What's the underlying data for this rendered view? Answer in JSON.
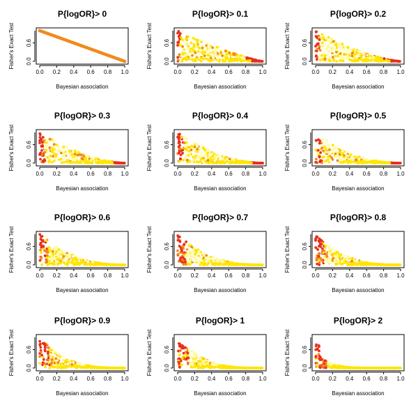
{
  "chart_data": [
    {
      "type": "scatter",
      "title": "P{logOR}> 0",
      "parameter": 0,
      "xlabel": "Bayesian association",
      "ylabel": "Fisher's Exact Test",
      "xlim": [
        0,
        1
      ],
      "ylim": [
        0,
        1
      ],
      "xticks": [
        "0.0",
        "0.2",
        "0.4",
        "0.6",
        "0.8",
        "1.0"
      ],
      "yticks": [
        "0.0",
        "0.6"
      ]
    },
    {
      "type": "scatter",
      "title": "P{logOR}> 0.1",
      "parameter": 0.1,
      "xlabel": "Bayesian association",
      "ylabel": "Fisher's Exact Test",
      "xlim": [
        0,
        1
      ],
      "ylim": [
        0,
        1
      ],
      "xticks": [
        "0.0",
        "0.2",
        "0.4",
        "0.6",
        "0.8",
        "1.0"
      ],
      "yticks": [
        "0.0",
        "0.6"
      ]
    },
    {
      "type": "scatter",
      "title": "P{logOR}> 0.2",
      "parameter": 0.2,
      "xlabel": "Bayesian association",
      "ylabel": "Fisher's Exact Test",
      "xlim": [
        0,
        1
      ],
      "ylim": [
        0,
        1
      ],
      "xticks": [
        "0.0",
        "0.2",
        "0.4",
        "0.6",
        "0.8",
        "1.0"
      ],
      "yticks": [
        "0.0",
        "0.6"
      ]
    },
    {
      "type": "scatter",
      "title": "P{logOR}> 0.3",
      "parameter": 0.3,
      "xlabel": "Bayesian association",
      "ylabel": "Fisher's Exact Test",
      "xlim": [
        0,
        1
      ],
      "ylim": [
        0,
        1
      ],
      "xticks": [
        "0.0",
        "0.2",
        "0.4",
        "0.6",
        "0.8",
        "1.0"
      ],
      "yticks": [
        "0.0",
        "0.6"
      ]
    },
    {
      "type": "scatter",
      "title": "P{logOR}> 0.4",
      "parameter": 0.4,
      "xlabel": "Bayesian association",
      "ylabel": "Fisher's Exact Test",
      "xlim": [
        0,
        1
      ],
      "ylim": [
        0,
        1
      ],
      "xticks": [
        "0.0",
        "0.2",
        "0.4",
        "0.6",
        "0.8",
        "1.0"
      ],
      "yticks": [
        "0.0",
        "0.6"
      ]
    },
    {
      "type": "scatter",
      "title": "P{logOR}> 0.5",
      "parameter": 0.5,
      "xlabel": "Bayesian association",
      "ylabel": "Fisher's Exact Test",
      "xlim": [
        0,
        1
      ],
      "ylim": [
        0,
        1
      ],
      "xticks": [
        "0.0",
        "0.2",
        "0.4",
        "0.6",
        "0.8",
        "1.0"
      ],
      "yticks": [
        "0.0",
        "0.6"
      ]
    },
    {
      "type": "scatter",
      "title": "P{logOR}> 0.6",
      "parameter": 0.6,
      "xlabel": "Bayesian association",
      "ylabel": "Fisher's Exact Test",
      "xlim": [
        0,
        1
      ],
      "ylim": [
        0,
        1
      ],
      "xticks": [
        "0.0",
        "0.2",
        "0.4",
        "0.6",
        "0.8",
        "1.0"
      ],
      "yticks": [
        "0.0",
        "0.6"
      ]
    },
    {
      "type": "scatter",
      "title": "P{logOR}> 0.7",
      "parameter": 0.7,
      "xlabel": "Bayesian association",
      "ylabel": "Fisher's Exact Test",
      "xlim": [
        0,
        1
      ],
      "ylim": [
        0,
        1
      ],
      "xticks": [
        "0.0",
        "0.2",
        "0.4",
        "0.6",
        "0.8",
        "1.0"
      ],
      "yticks": [
        "0.0",
        "0.6"
      ]
    },
    {
      "type": "scatter",
      "title": "P{logOR}> 0.8",
      "parameter": 0.8,
      "xlabel": "Bayesian association",
      "ylabel": "Fisher's Exact Test",
      "xlim": [
        0,
        1
      ],
      "ylim": [
        0,
        1
      ],
      "xticks": [
        "0.0",
        "0.2",
        "0.4",
        "0.6",
        "0.8",
        "1.0"
      ],
      "yticks": [
        "0.0",
        "0.6"
      ]
    },
    {
      "type": "scatter",
      "title": "P{logOR}> 0.9",
      "parameter": 0.9,
      "xlabel": "Bayesian association",
      "ylabel": "Fisher's Exact Test",
      "xlim": [
        0,
        1
      ],
      "ylim": [
        0,
        1
      ],
      "xticks": [
        "0.0",
        "0.2",
        "0.4",
        "0.6",
        "0.8",
        "1.0"
      ],
      "yticks": [
        "0.0",
        "0.6"
      ]
    },
    {
      "type": "scatter",
      "title": "P{logOR}> 1",
      "parameter": 1,
      "xlabel": "Bayesian association",
      "ylabel": "Fisher's Exact Test",
      "xlim": [
        0,
        1
      ],
      "ylim": [
        0,
        1
      ],
      "xticks": [
        "0.0",
        "0.2",
        "0.4",
        "0.6",
        "0.8",
        "1.0"
      ],
      "yticks": [
        "0.0",
        "0.6"
      ]
    },
    {
      "type": "scatter",
      "title": "P{logOR}> 2",
      "parameter": 2,
      "xlabel": "Bayesian association",
      "ylabel": "Fisher's Exact Test",
      "xlim": [
        0,
        1
      ],
      "ylim": [
        0,
        1
      ],
      "xticks": [
        "0.0",
        "0.2",
        "0.4",
        "0.6",
        "0.8",
        "1.0"
      ],
      "yticks": [
        "0.0",
        "0.6"
      ]
    }
  ],
  "palette": {
    "red": "#e8301c",
    "orange": "#f28a1e",
    "yellow": "#ffe500",
    "pale": "#fffaa0",
    "cream": "#fffdd2"
  }
}
